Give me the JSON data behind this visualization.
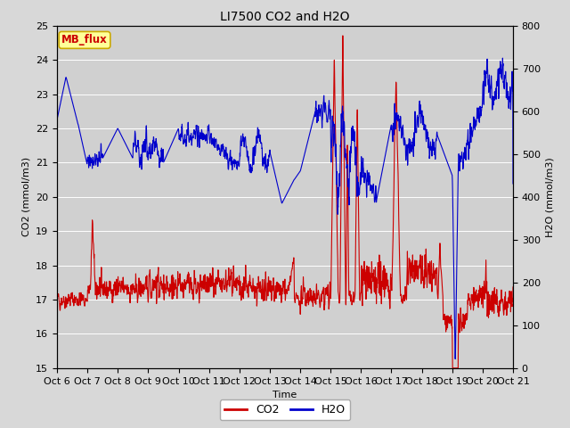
{
  "title": "LI7500 CO2 and H2O",
  "xlabel": "Time",
  "ylabel_left": "CO2 (mmol/m3)",
  "ylabel_right": "H2O (mmol/m3)",
  "co2_ylim": [
    15.0,
    25.0
  ],
  "h2o_ylim": [
    0,
    800
  ],
  "co2_yticks": [
    15.0,
    16.0,
    17.0,
    18.0,
    19.0,
    20.0,
    21.0,
    22.0,
    23.0,
    24.0,
    25.0
  ],
  "h2o_yticks": [
    0,
    100,
    200,
    300,
    400,
    500,
    600,
    700,
    800
  ],
  "xtick_labels": [
    "Oct 6",
    "Oct 7",
    "Oct 8",
    "Oct 9",
    "Oct 10",
    "Oct 11",
    "Oct 12",
    "Oct 13",
    "Oct 14",
    "Oct 15",
    "Oct 16",
    "Oct 17",
    "Oct 18",
    "Oct 19",
    "Oct 20",
    "Oct 21"
  ],
  "co2_color": "#cc0000",
  "h2o_color": "#0000cc",
  "fig_bg_color": "#d8d8d8",
  "plot_bg_color": "#d0d0d0",
  "annotation_text": "MB_flux",
  "annotation_bg": "#ffff99",
  "annotation_border": "#ccaa00",
  "annotation_text_color": "#cc0000",
  "title_fontsize": 10,
  "label_fontsize": 8,
  "tick_fontsize": 8,
  "legend_fontsize": 9
}
